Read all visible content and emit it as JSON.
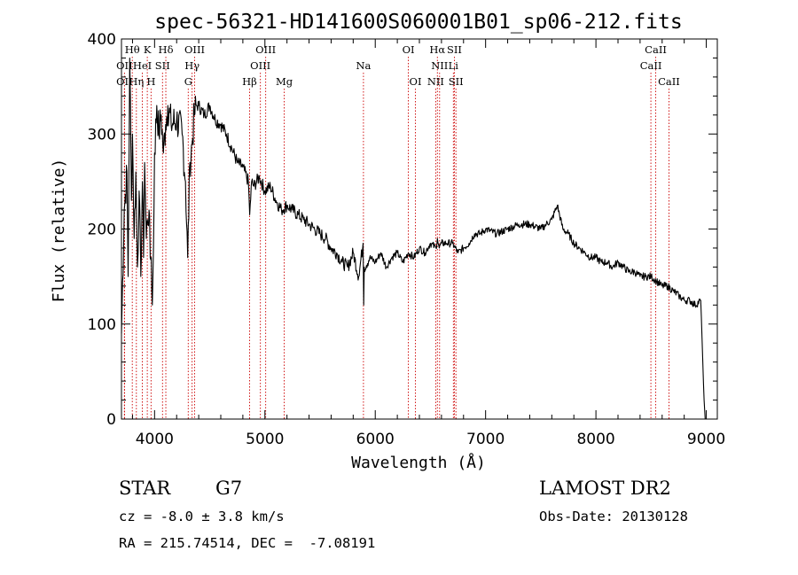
{
  "chart_data": {
    "type": "line",
    "title": "spec-56321-HD141600S060001B01_sp06-212.fits",
    "xlabel": "Wavelength (Å)",
    "ylabel": "Flux (relative)",
    "xlim": [
      3700,
      9100
    ],
    "ylim": [
      0,
      400
    ],
    "xticks": [
      4000,
      5000,
      6000,
      7000,
      8000,
      9000
    ],
    "yticks": [
      0,
      100,
      200,
      300,
      400
    ],
    "grid": false,
    "series": [
      {
        "x": [
          3700,
          3725,
          3750,
          3760,
          3775,
          3790,
          3800,
          3815,
          3830,
          3845,
          3860,
          3875,
          3890,
          3900,
          3910,
          3925,
          3935,
          3950,
          3960,
          3970,
          3980,
          3990,
          4000,
          4020,
          4040,
          4060,
          4080,
          4100,
          4120,
          4150,
          4200,
          4250,
          4280,
          4300,
          4320,
          4340,
          4360,
          4380,
          4400,
          4450,
          4500,
          4550,
          4600,
          4650,
          4700,
          4750,
          4800,
          4850,
          4862,
          4880,
          4900,
          4950,
          5000,
          5050,
          5100,
          5150,
          5200,
          5250,
          5300,
          5350,
          5400,
          5450,
          5500,
          5550,
          5600,
          5650,
          5700,
          5750,
          5800,
          5850,
          5890,
          5895,
          5900,
          5950,
          6000,
          6050,
          6100,
          6150,
          6200,
          6250,
          6300,
          6350,
          6400,
          6450,
          6500,
          6550,
          6563,
          6580,
          6600,
          6650,
          6700,
          6750,
          6800,
          6850,
          6900,
          6950,
          7000,
          7100,
          7200,
          7300,
          7400,
          7500,
          7550,
          7600,
          7650,
          7700,
          7750,
          7800,
          7850,
          7900,
          7950,
          8000,
          8050,
          8100,
          8150,
          8200,
          8250,
          8300,
          8350,
          8400,
          8450,
          8500,
          8550,
          8600,
          8650,
          8700,
          8750,
          8800,
          8850,
          8900,
          8950,
          8980,
          8990,
          9000
        ],
        "y": [
          90,
          220,
          260,
          150,
          380,
          230,
          300,
          190,
          260,
          160,
          240,
          150,
          250,
          170,
          270,
          190,
          210,
          220,
          170,
          170,
          120,
          180,
          280,
          330,
          300,
          320,
          280,
          310,
          330,
          310,
          315,
          300,
          250,
          170,
          270,
          290,
          320,
          330,
          330,
          320,
          330,
          315,
          310,
          300,
          285,
          270,
          265,
          250,
          215,
          250,
          245,
          255,
          240,
          245,
          230,
          220,
          225,
          220,
          215,
          210,
          205,
          200,
          195,
          190,
          180,
          175,
          165,
          160,
          175,
          150,
          185,
          120,
          160,
          170,
          165,
          175,
          160,
          170,
          175,
          165,
          175,
          170,
          180,
          175,
          185,
          180,
          190,
          180,
          185,
          185,
          185,
          175,
          180,
          185,
          195,
          195,
          200,
          195,
          200,
          205,
          205,
          200,
          205,
          210,
          225,
          200,
          195,
          185,
          180,
          175,
          170,
          170,
          165,
          165,
          160,
          165,
          160,
          155,
          155,
          150,
          150,
          150,
          145,
          140,
          140,
          135,
          130,
          125,
          125,
          120,
          125,
          20,
          0,
          0
        ]
      }
    ],
    "lines": [
      {
        "label": "Hθ",
        "row": 0,
        "x": 3798
      },
      {
        "label": "K",
        "row": 0,
        "x": 3934
      },
      {
        "label": "Hδ",
        "row": 0,
        "x": 4102
      },
      {
        "label": "OIII",
        "row": 0,
        "x": 4363
      },
      {
        "label": "OIII",
        "row": 0,
        "x": 5007
      },
      {
        "label": "OI",
        "row": 0,
        "x": 6300
      },
      {
        "label": "Hα",
        "row": 0,
        "x": 6563
      },
      {
        "label": "SII",
        "row": 0,
        "x": 6717
      },
      {
        "label": "CaII",
        "row": 0,
        "x": 8542
      },
      {
        "label": "OII",
        "row": 1,
        "x": 3727
      },
      {
        "label": "HeI",
        "row": 1,
        "x": 3889
      },
      {
        "label": "SII",
        "row": 1,
        "x": 4072
      },
      {
        "label": "Hγ",
        "row": 1,
        "x": 4340
      },
      {
        "label": "OIII",
        "row": 1,
        "x": 4959
      },
      {
        "label": "Na",
        "row": 1,
        "x": 5893
      },
      {
        "label": "NII",
        "row": 1,
        "x": 6583
      },
      {
        "label": "Li",
        "row": 1,
        "x": 6708
      },
      {
        "label": "CaII",
        "row": 1,
        "x": 8498
      },
      {
        "label": "OII",
        "row": 2,
        "x": 3727
      },
      {
        "label": "Hη",
        "row": 2,
        "x": 3835
      },
      {
        "label": "H",
        "row": 2,
        "x": 3968
      },
      {
        "label": "G",
        "row": 2,
        "x": 4305
      },
      {
        "label": "Hβ",
        "row": 2,
        "x": 4861
      },
      {
        "label": "Mg",
        "row": 2,
        "x": 5175
      },
      {
        "label": "OI",
        "row": 2,
        "x": 6364
      },
      {
        "label": "NII",
        "row": 2,
        "x": 6548
      },
      {
        "label": "SII",
        "row": 2,
        "x": 6731
      },
      {
        "label": "CaII",
        "row": 2,
        "x": 8662
      }
    ],
    "line_marker_color": "#cc0000"
  },
  "info": {
    "class_label": "STAR",
    "subclass": "G7",
    "cz": "cz = -8.0 ± 3.8 km/s",
    "radec": "RA = 215.74514, DEC =  -7.08191",
    "survey": "LAMOST DR2",
    "obsdate": "Obs-Date: 20130128"
  }
}
